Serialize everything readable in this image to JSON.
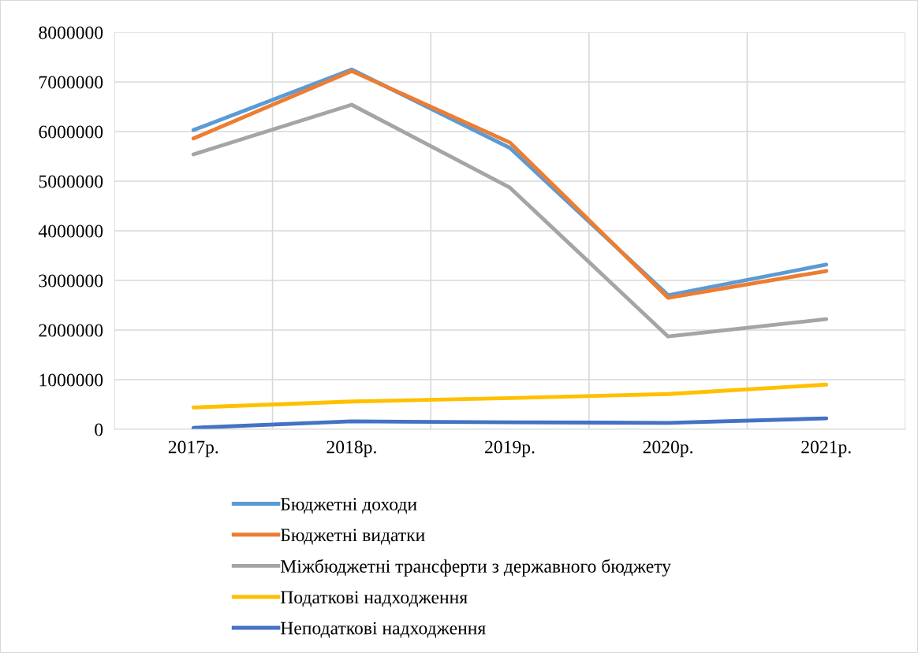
{
  "chart_data": {
    "type": "line",
    "categories": [
      "2017р.",
      "2018р.",
      "2019р.",
      "2020р.",
      "2021р."
    ],
    "series": [
      {
        "name": "Бюджетні доходи",
        "color": "#5b9bd5",
        "values": [
          6030000,
          7250000,
          5670000,
          2700000,
          3320000
        ]
      },
      {
        "name": "Бюджетні видатки",
        "color": "#ed7d31",
        "values": [
          5860000,
          7220000,
          5780000,
          2650000,
          3190000
        ]
      },
      {
        "name": "Міжбюджетні трансферти з державного бюджету",
        "color": "#a5a5a5",
        "values": [
          5540000,
          6540000,
          4870000,
          1870000,
          2220000
        ]
      },
      {
        "name": "Податкові надходження",
        "color": "#ffc000",
        "values": [
          440000,
          560000,
          630000,
          710000,
          900000
        ]
      },
      {
        "name": "Неподаткові надходження",
        "color": "#4472c4",
        "values": [
          30000,
          160000,
          140000,
          130000,
          220000
        ]
      }
    ],
    "ylim": [
      0,
      8000000
    ],
    "yticks": [
      0,
      1000000,
      2000000,
      3000000,
      4000000,
      5000000,
      6000000,
      7000000,
      8000000
    ],
    "grid": true,
    "legend": "bottom",
    "marker": "none",
    "line_style": "solid"
  }
}
